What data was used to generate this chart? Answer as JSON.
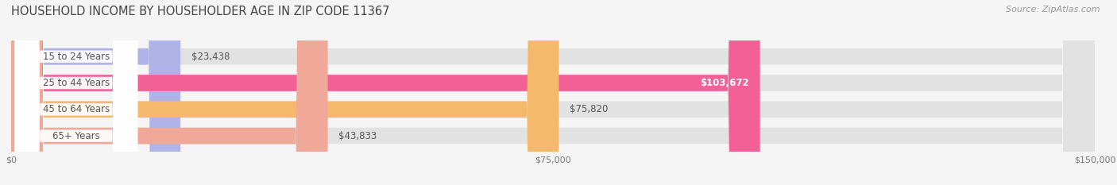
{
  "title": "HOUSEHOLD INCOME BY HOUSEHOLDER AGE IN ZIP CODE 11367",
  "source": "Source: ZipAtlas.com",
  "categories": [
    "15 to 24 Years",
    "25 to 44 Years",
    "45 to 64 Years",
    "65+ Years"
  ],
  "values": [
    23438,
    103672,
    75820,
    43833
  ],
  "bar_colors": [
    "#b0b3e8",
    "#f26096",
    "#f5b96e",
    "#f0a898"
  ],
  "bg_color": "#f5f5f5",
  "bar_bg_color": "#e2e2e2",
  "xlim_max": 150000,
  "xticks": [
    0,
    75000,
    150000
  ],
  "xtick_labels": [
    "$0",
    "$75,000",
    "$150,000"
  ],
  "value_labels": [
    "$23,438",
    "$103,672",
    "$75,820",
    "$43,833"
  ],
  "label_inside": [
    false,
    true,
    false,
    false
  ],
  "title_fontsize": 10.5,
  "source_fontsize": 8,
  "bar_height": 0.62,
  "label_pill_color": "#ffffff",
  "label_text_color": "#555555",
  "value_text_color_inside": "#ffffff",
  "value_text_color_outside": "#555555"
}
